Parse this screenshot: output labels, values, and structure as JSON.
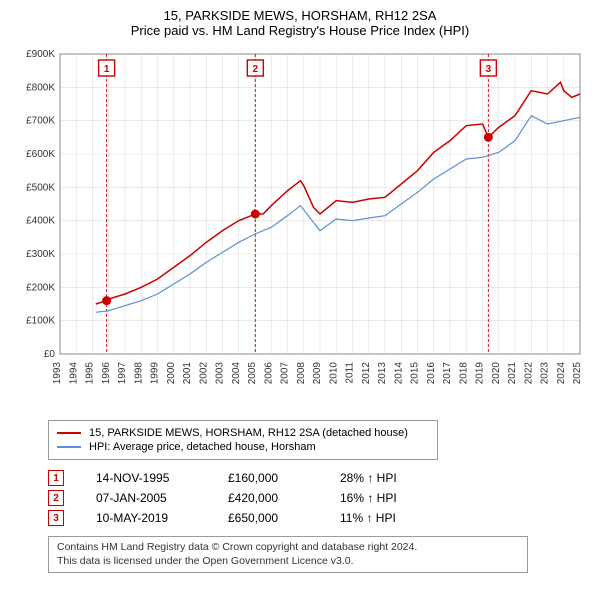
{
  "title_line1": "15, PARKSIDE MEWS, HORSHAM, RH12 2SA",
  "title_line2": "Price paid vs. HM Land Registry's House Price Index (HPI)",
  "title_fontsize": 13,
  "chart": {
    "type": "line",
    "background_color": "#ffffff",
    "plot_border_color": "#888888",
    "grid_color": "#dddddd",
    "axis_text_color": "#333333",
    "axis_fontsize": 10,
    "x_axis": {
      "years": [
        1993,
        1994,
        1995,
        1996,
        1997,
        1998,
        1999,
        2000,
        2001,
        2002,
        2003,
        2004,
        2005,
        2006,
        2007,
        2008,
        2009,
        2010,
        2011,
        2012,
        2013,
        2014,
        2015,
        2016,
        2017,
        2018,
        2019,
        2020,
        2021,
        2022,
        2023,
        2024,
        2025
      ],
      "tick_rotation": -90
    },
    "y_axis": {
      "min": 0,
      "max": 900000,
      "tick_step": 100000,
      "tick_labels": [
        "£0",
        "£100K",
        "£200K",
        "£300K",
        "£400K",
        "£500K",
        "£600K",
        "£700K",
        "£800K",
        "£900K"
      ]
    },
    "series": [
      {
        "name": "price_paid",
        "label": "15, PARKSIDE MEWS, HORSHAM, RH12 2SA (detached house)",
        "color": "#cc0000",
        "line_width": 1.5,
        "x": [
          1995.2,
          1995.87,
          1996,
          1997,
          1998,
          1999,
          2000,
          2001,
          2002,
          2003,
          2004,
          2005.02,
          2005.5,
          2006,
          2007,
          2007.8,
          2008,
          2008.6,
          2009,
          2010,
          2011,
          2012,
          2013,
          2014,
          2015,
          2016,
          2017,
          2018,
          2019,
          2019.36,
          2020,
          2021,
          2022,
          2023,
          2023.8,
          2024,
          2024.5,
          2025
        ],
        "y": [
          150000,
          160000,
          165000,
          180000,
          200000,
          225000,
          260000,
          295000,
          335000,
          370000,
          400000,
          420000,
          420000,
          445000,
          490000,
          520000,
          505000,
          440000,
          420000,
          460000,
          455000,
          465000,
          470000,
          510000,
          550000,
          605000,
          640000,
          685000,
          690000,
          650000,
          680000,
          715000,
          790000,
          780000,
          815000,
          790000,
          770000,
          780000
        ]
      },
      {
        "name": "hpi",
        "label": "HPI: Average price, detached house, Horsham",
        "color": "#5b8fd6",
        "line_width": 1.2,
        "x": [
          1995.2,
          1996,
          1997,
          1998,
          1999,
          2000,
          2001,
          2002,
          2003,
          2004,
          2005,
          2006,
          2007,
          2007.8,
          2008.6,
          2009,
          2010,
          2011,
          2012,
          2013,
          2014,
          2015,
          2016,
          2017,
          2018,
          2019,
          2020,
          2021,
          2022,
          2023,
          2024,
          2025
        ],
        "y": [
          125000,
          130000,
          145000,
          160000,
          180000,
          210000,
          240000,
          275000,
          305000,
          335000,
          360000,
          380000,
          415000,
          445000,
          395000,
          370000,
          405000,
          400000,
          408000,
          415000,
          450000,
          485000,
          525000,
          555000,
          585000,
          590000,
          605000,
          640000,
          715000,
          690000,
          700000,
          710000
        ]
      }
    ],
    "sale_markers": [
      {
        "badge": "1",
        "x": 1995.87,
        "y": 160000,
        "dot_color": "#cc0000",
        "badge_border": "#cc0000",
        "vline_color": "#cc0000",
        "vline_dash": "3,2"
      },
      {
        "badge": "2",
        "x": 2005.02,
        "y": 420000,
        "dot_color": "#cc0000",
        "badge_border": "#cc0000",
        "vline_color": "#cc0000",
        "vline_dash": "3,2"
      },
      {
        "badge": "3",
        "x": 2019.36,
        "y": 650000,
        "dot_color": "#cc0000",
        "badge_border": "#cc0000",
        "vline_color": "#cc0000",
        "vline_dash": "3,2"
      }
    ]
  },
  "legend": {
    "border_color": "#999999",
    "fontsize": 11,
    "items": [
      {
        "color": "#cc0000",
        "label": "15, PARKSIDE MEWS, HORSHAM, RH12 2SA (detached house)"
      },
      {
        "color": "#5b8fd6",
        "label": "HPI: Average price, detached house, Horsham"
      }
    ]
  },
  "sales_table": {
    "fontsize": 12,
    "badge_border": "#cc0000",
    "badge_text": "#cc0000",
    "rows": [
      {
        "badge": "1",
        "date": "14-NOV-1995",
        "price": "£160,000",
        "hpi": "28% ↑ HPI"
      },
      {
        "badge": "2",
        "date": "07-JAN-2005",
        "price": "£420,000",
        "hpi": "16% ↑ HPI"
      },
      {
        "badge": "3",
        "date": "10-MAY-2019",
        "price": "£650,000",
        "hpi": "11% ↑ HPI"
      }
    ]
  },
  "license": {
    "border_color": "#999999",
    "fontsize": 10.5,
    "line1": "Contains HM Land Registry data © Crown copyright and database right 2024.",
    "line2": "This data is licensed under the Open Government Licence v3.0."
  }
}
